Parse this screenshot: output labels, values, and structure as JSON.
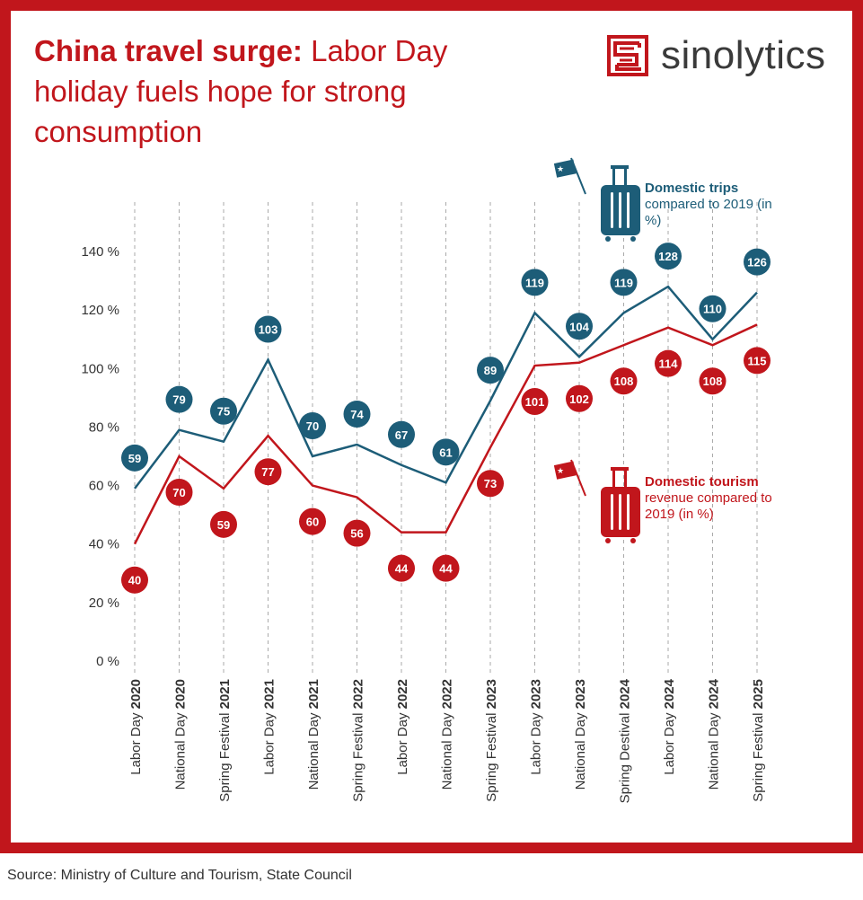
{
  "title": {
    "bold": "China travel surge:",
    "rest": " Labor Day holiday fuels hope for strong consumption"
  },
  "logo": {
    "text": "sinolytics",
    "color": "#c1161c"
  },
  "source": "Source: Ministry of Culture and Tourism, State Council",
  "colors": {
    "frame": "#c1161c",
    "trips": "#1d5d78",
    "revenue": "#c1161c"
  },
  "legend": {
    "trips": {
      "bold": "Domestic trips",
      "rest": "compared to 2019 (in %)",
      "icon": "suitcase-with-china-flag-icon"
    },
    "revenue": {
      "bold": "Domestic tourism",
      "rest": "revenue compared to 2019 (in %)",
      "icon": "suitcase-with-china-flag-icon"
    }
  },
  "chart_data": {
    "type": "line",
    "ylim": [
      0,
      140
    ],
    "yticks": [
      "0 %",
      "20 %",
      "40 %",
      "60 %",
      "80 %",
      "100 %",
      "120 %",
      "140 %"
    ],
    "ytick_values": [
      0,
      20,
      40,
      60,
      80,
      100,
      120,
      140
    ],
    "categories": [
      {
        "name": "Labor Day",
        "year": "2020"
      },
      {
        "name": "National Day",
        "year": "2020"
      },
      {
        "name": "Spring Festival",
        "year": "2021"
      },
      {
        "name": "Labor Day",
        "year": "2021"
      },
      {
        "name": "National Day",
        "year": "2021"
      },
      {
        "name": "Spring Festival",
        "year": "2022"
      },
      {
        "name": "Labor Day",
        "year": "2022"
      },
      {
        "name": "National Day",
        "year": "2022"
      },
      {
        "name": "Spring Festival",
        "year": "2023"
      },
      {
        "name": "Labor Day",
        "year": "2023"
      },
      {
        "name": "National Day",
        "year": "2023"
      },
      {
        "name": "Spring Destival",
        "year": "2024"
      },
      {
        "name": "Labor Day",
        "year": "2024"
      },
      {
        "name": "National Day",
        "year": "2024"
      },
      {
        "name": "Spring Festival",
        "year": "2025"
      }
    ],
    "series": [
      {
        "name": "Domestic trips compared to 2019 (in %)",
        "color": "#1d5d78",
        "values": [
          59,
          79,
          75,
          103,
          70,
          74,
          67,
          61,
          89,
          119,
          104,
          119,
          128,
          110,
          126
        ]
      },
      {
        "name": "Domestic tourism revenue compared to 2019 (in %)",
        "color": "#c1161c",
        "values": [
          40,
          70,
          59,
          77,
          60,
          56,
          44,
          44,
          73,
          101,
          102,
          108,
          114,
          108,
          115
        ]
      }
    ],
    "grid": "vertical dashed lines at each category",
    "legend_placement": "inline (top-right for trips, middle-right for revenue)"
  }
}
